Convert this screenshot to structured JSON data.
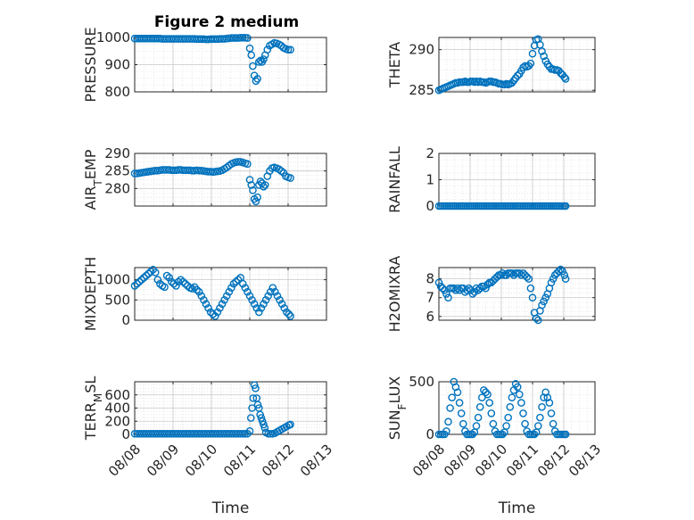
{
  "figure": {
    "title": "Figure 2 medium",
    "marker_color": "#0072BD"
  },
  "chart_data": [
    {
      "type": "scatter",
      "name": "PRESSURE",
      "ylabel": "PRESSURE",
      "xlabel": "",
      "xlim": [
        0,
        5
      ],
      "ylim": [
        800,
        1000
      ],
      "yticks": [
        800,
        900,
        1000
      ],
      "ytick_labels": [
        "800",
        "900",
        "1000"
      ],
      "xticks": [
        0,
        1,
        2,
        3,
        4,
        5
      ],
      "xtick_labels": [],
      "grid": true,
      "x": [
        0.0,
        0.06,
        0.12,
        0.18,
        0.24,
        0.3,
        0.36,
        0.42,
        0.48,
        0.54,
        0.6,
        0.66,
        0.72,
        0.78,
        0.84,
        0.9,
        0.96,
        1.02,
        1.08,
        1.14,
        1.2,
        1.26,
        1.32,
        1.38,
        1.44,
        1.5,
        1.56,
        1.62,
        1.68,
        1.74,
        1.8,
        1.86,
        1.92,
        1.98,
        2.04,
        2.1,
        2.16,
        2.22,
        2.28,
        2.34,
        2.4,
        2.46,
        2.52,
        2.58,
        2.64,
        2.7,
        2.76,
        2.82,
        2.88,
        2.94,
        3.0,
        3.04,
        3.08,
        3.12,
        3.16,
        3.2,
        3.24,
        3.28,
        3.32,
        3.36,
        3.4,
        3.46,
        3.52,
        3.58,
        3.64,
        3.7,
        3.76,
        3.82,
        3.88,
        3.94,
        4.0,
        4.06
      ],
      "y": [
        996,
        996,
        996,
        996,
        996,
        996,
        996,
        996,
        996,
        996,
        996,
        996,
        995,
        995,
        995,
        995,
        995,
        995,
        995,
        995,
        995,
        995,
        995,
        995,
        995,
        995,
        995,
        994,
        994,
        994,
        994,
        993,
        993,
        994,
        994,
        994,
        994,
        995,
        995,
        995,
        996,
        997,
        998,
        998,
        998,
        998,
        999,
        999,
        999,
        998,
        960,
        935,
        895,
        860,
        840,
        848,
        910,
        915,
        910,
        920,
        935,
        955,
        970,
        975,
        980,
        978,
        975,
        970,
        962,
        958,
        955,
        955
      ]
    },
    {
      "type": "scatter",
      "name": "THETA",
      "ylabel": "THETA",
      "xlabel": "",
      "xlim": [
        0,
        5
      ],
      "ylim": [
        284.8,
        291.5
      ],
      "yticks": [
        285,
        290
      ],
      "ytick_labels": [
        "285",
        "290"
      ],
      "xticks": [
        0,
        1,
        2,
        3,
        4,
        5
      ],
      "xtick_labels": [],
      "grid": true,
      "x": [
        0.0,
        0.06,
        0.12,
        0.18,
        0.24,
        0.3,
        0.36,
        0.42,
        0.48,
        0.54,
        0.6,
        0.66,
        0.72,
        0.78,
        0.84,
        0.9,
        0.96,
        1.02,
        1.08,
        1.14,
        1.2,
        1.26,
        1.32,
        1.38,
        1.44,
        1.5,
        1.56,
        1.62,
        1.68,
        1.74,
        1.8,
        1.86,
        1.92,
        1.98,
        2.04,
        2.1,
        2.16,
        2.22,
        2.28,
        2.34,
        2.4,
        2.46,
        2.52,
        2.58,
        2.64,
        2.7,
        2.76,
        2.82,
        2.88,
        2.94,
        3.0,
        3.06,
        3.12,
        3.18,
        3.24,
        3.3,
        3.36,
        3.42,
        3.48,
        3.54,
        3.6,
        3.66,
        3.72,
        3.78,
        3.84,
        3.9,
        3.96,
        4.02,
        4.06
      ],
      "y": [
        285.0,
        285.1,
        285.2,
        285.3,
        285.4,
        285.5,
        285.6,
        285.7,
        285.8,
        285.9,
        285.9,
        286.0,
        286.0,
        286.0,
        286.1,
        286.0,
        286.0,
        286.1,
        286.1,
        286.0,
        286.1,
        286.0,
        286.1,
        286.0,
        286.0,
        285.9,
        286.0,
        286.1,
        286.1,
        286.0,
        286.0,
        285.9,
        285.8,
        285.8,
        285.7,
        285.7,
        285.8,
        285.7,
        285.8,
        285.9,
        286.2,
        286.5,
        286.8,
        287.0,
        287.4,
        287.8,
        288.0,
        287.9,
        288.0,
        288.3,
        289.5,
        290.5,
        291.2,
        291.3,
        290.6,
        289.8,
        289.2,
        288.6,
        288.2,
        287.9,
        287.6,
        287.6,
        287.5,
        287.5,
        287.4,
        287.1,
        286.9,
        286.6,
        286.4
      ]
    },
    {
      "type": "scatter",
      "name": "AIR_TEMP",
      "ylabel": "AIR_TEMP",
      "xlabel": "",
      "xlim": [
        0,
        5
      ],
      "ylim": [
        275,
        290
      ],
      "yticks": [
        280,
        285,
        290
      ],
      "ytick_labels": [
        "280",
        "285",
        "290"
      ],
      "xticks": [
        0,
        1,
        2,
        3,
        4,
        5
      ],
      "xtick_labels": [],
      "grid": true,
      "x": [
        0.0,
        0.06,
        0.12,
        0.18,
        0.24,
        0.3,
        0.36,
        0.42,
        0.48,
        0.54,
        0.6,
        0.66,
        0.72,
        0.78,
        0.84,
        0.9,
        0.96,
        1.02,
        1.08,
        1.14,
        1.2,
        1.26,
        1.32,
        1.38,
        1.44,
        1.5,
        1.56,
        1.62,
        1.68,
        1.74,
        1.8,
        1.86,
        1.92,
        1.98,
        2.04,
        2.1,
        2.16,
        2.22,
        2.28,
        2.34,
        2.4,
        2.46,
        2.52,
        2.58,
        2.64,
        2.7,
        2.76,
        2.82,
        2.88,
        2.94,
        3.0,
        3.04,
        3.08,
        3.12,
        3.16,
        3.2,
        3.24,
        3.28,
        3.32,
        3.36,
        3.4,
        3.46,
        3.52,
        3.58,
        3.64,
        3.7,
        3.76,
        3.82,
        3.88,
        3.94,
        4.0,
        4.06
      ],
      "y": [
        284.3,
        284.3,
        284.4,
        284.5,
        284.6,
        284.7,
        284.8,
        284.9,
        285.0,
        285.1,
        285.1,
        285.2,
        285.3,
        285.3,
        285.3,
        285.3,
        285.2,
        285.2,
        285.2,
        285.3,
        285.3,
        285.2,
        285.2,
        285.2,
        285.2,
        285.1,
        285.1,
        285.2,
        285.1,
        285.1,
        285.0,
        284.9,
        284.8,
        284.8,
        284.7,
        284.8,
        284.9,
        285.0,
        285.2,
        285.6,
        286.0,
        286.5,
        287.0,
        287.3,
        287.5,
        287.6,
        287.6,
        287.4,
        287.2,
        287.0,
        282.5,
        281.0,
        279.5,
        277.0,
        276.3,
        277.5,
        281.0,
        282.0,
        281.5,
        280.5,
        281.0,
        283.5,
        285.0,
        285.8,
        286.0,
        285.8,
        285.5,
        285.0,
        284.5,
        283.5,
        283.2,
        283.0
      ]
    },
    {
      "type": "scatter",
      "name": "RAINFALL",
      "ylabel": "RAINFALL",
      "xlabel": "",
      "xlim": [
        0,
        5
      ],
      "ylim": [
        0,
        2
      ],
      "yticks": [
        0,
        1,
        2
      ],
      "ytick_labels": [
        "0",
        "1",
        "2"
      ],
      "xticks": [
        0,
        1,
        2,
        3,
        4,
        5
      ],
      "xtick_labels": [],
      "grid": true,
      "x": [
        0.0,
        0.06,
        0.12,
        0.18,
        0.24,
        0.3,
        0.36,
        0.42,
        0.48,
        0.54,
        0.6,
        0.66,
        0.72,
        0.78,
        0.84,
        0.9,
        0.96,
        1.02,
        1.08,
        1.14,
        1.2,
        1.26,
        1.32,
        1.38,
        1.44,
        1.5,
        1.56,
        1.62,
        1.68,
        1.74,
        1.8,
        1.86,
        1.92,
        1.98,
        2.04,
        2.1,
        2.16,
        2.22,
        2.28,
        2.34,
        2.4,
        2.46,
        2.52,
        2.58,
        2.64,
        2.7,
        2.76,
        2.82,
        2.88,
        2.94,
        3.0,
        3.06,
        3.12,
        3.18,
        3.24,
        3.3,
        3.36,
        3.42,
        3.48,
        3.54,
        3.6,
        3.66,
        3.72,
        3.78,
        3.84,
        3.9,
        3.96,
        4.02,
        4.06
      ],
      "y": [
        0,
        0,
        0,
        0,
        0,
        0,
        0,
        0,
        0,
        0,
        0,
        0,
        0,
        0,
        0,
        0,
        0,
        0,
        0,
        0,
        0,
        0,
        0,
        0,
        0,
        0,
        0,
        0,
        0,
        0,
        0,
        0,
        0,
        0,
        0,
        0,
        0,
        0,
        0,
        0,
        0,
        0,
        0,
        0,
        0,
        0,
        0,
        0,
        0,
        0,
        0,
        0,
        0,
        0,
        0,
        0,
        0,
        0,
        0,
        0,
        0,
        0,
        0,
        0,
        0,
        0,
        0,
        0,
        0
      ]
    },
    {
      "type": "scatter",
      "name": "MIXDEPTH",
      "ylabel": "MIXDEPTH",
      "xlabel": "",
      "xlim": [
        0,
        5
      ],
      "ylim": [
        0,
        1300
      ],
      "yticks": [
        0,
        500,
        1000
      ],
      "ytick_labels": [
        "0",
        "500",
        "1000"
      ],
      "xticks": [
        0,
        1,
        2,
        3,
        4,
        5
      ],
      "xtick_labels": [],
      "grid": true,
      "x": [
        0.0,
        0.06,
        0.12,
        0.18,
        0.24,
        0.3,
        0.36,
        0.42,
        0.48,
        0.54,
        0.6,
        0.66,
        0.72,
        0.78,
        0.84,
        0.9,
        0.96,
        1.02,
        1.08,
        1.14,
        1.2,
        1.26,
        1.32,
        1.38,
        1.44,
        1.5,
        1.56,
        1.62,
        1.68,
        1.74,
        1.8,
        1.86,
        1.92,
        1.98,
        2.04,
        2.1,
        2.16,
        2.22,
        2.28,
        2.34,
        2.4,
        2.46,
        2.52,
        2.58,
        2.64,
        2.7,
        2.76,
        2.82,
        2.88,
        2.94,
        3.0,
        3.06,
        3.12,
        3.18,
        3.24,
        3.3,
        3.36,
        3.42,
        3.48,
        3.54,
        3.6,
        3.66,
        3.72,
        3.78,
        3.84,
        3.9,
        3.96,
        4.02,
        4.06
      ],
      "y": [
        850,
        900,
        950,
        1000,
        1050,
        1100,
        1150,
        1200,
        1250,
        1180,
        1000,
        900,
        850,
        820,
        1100,
        1050,
        950,
        900,
        850,
        950,
        1000,
        950,
        900,
        850,
        800,
        780,
        820,
        750,
        700,
        600,
        500,
        400,
        300,
        200,
        150,
        100,
        200,
        300,
        400,
        500,
        600,
        700,
        800,
        900,
        950,
        1000,
        1050,
        900,
        800,
        700,
        600,
        500,
        400,
        300,
        200,
        300,
        400,
        500,
        600,
        700,
        800,
        700,
        600,
        500,
        400,
        300,
        200,
        150,
        100
      ]
    },
    {
      "type": "scatter",
      "name": "H2OMIXRA",
      "ylabel": "H2OMIXRA",
      "xlabel": "",
      "xlim": [
        0,
        5
      ],
      "ylim": [
        5.8,
        8.6
      ],
      "yticks": [
        6,
        7,
        8
      ],
      "ytick_labels": [
        "6",
        "7",
        "8"
      ],
      "xticks": [
        0,
        1,
        2,
        3,
        4,
        5
      ],
      "xtick_labels": [],
      "grid": true,
      "x": [
        0.0,
        0.06,
        0.12,
        0.18,
        0.24,
        0.3,
        0.36,
        0.42,
        0.48,
        0.54,
        0.6,
        0.66,
        0.72,
        0.78,
        0.84,
        0.9,
        0.96,
        1.02,
        1.08,
        1.14,
        1.2,
        1.26,
        1.32,
        1.38,
        1.44,
        1.5,
        1.56,
        1.62,
        1.68,
        1.74,
        1.8,
        1.86,
        1.92,
        1.98,
        2.04,
        2.1,
        2.16,
        2.22,
        2.28,
        2.34,
        2.4,
        2.46,
        2.52,
        2.58,
        2.64,
        2.7,
        2.76,
        2.82,
        2.88,
        2.94,
        3.0,
        3.06,
        3.12,
        3.18,
        3.24,
        3.3,
        3.36,
        3.42,
        3.48,
        3.54,
        3.6,
        3.66,
        3.72,
        3.78,
        3.84,
        3.9,
        3.96,
        4.02,
        4.06
      ],
      "y": [
        7.8,
        7.6,
        7.5,
        7.4,
        7.2,
        7.0,
        7.5,
        7.5,
        7.5,
        7.4,
        7.5,
        7.4,
        7.5,
        7.5,
        7.3,
        7.4,
        7.5,
        7.4,
        7.2,
        7.3,
        7.5,
        7.4,
        7.5,
        7.6,
        7.6,
        7.5,
        7.7,
        7.8,
        7.8,
        7.9,
        8.0,
        8.1,
        8.2,
        8.2,
        8.3,
        8.2,
        8.2,
        8.3,
        8.3,
        8.3,
        8.2,
        8.3,
        8.3,
        8.3,
        8.2,
        8.3,
        8.2,
        8.1,
        8.0,
        7.5,
        7.0,
        6.2,
        5.9,
        5.8,
        6.3,
        6.6,
        6.8,
        7.0,
        7.2,
        7.5,
        7.8,
        8.0,
        8.2,
        8.3,
        8.4,
        8.5,
        8.4,
        8.2,
        8.0
      ]
    },
    {
      "type": "scatter",
      "name": "TERR_MSL",
      "ylabel": "TERR_MSL",
      "xlabel": "Time",
      "xlim": [
        0,
        5
      ],
      "ylim": [
        0,
        800
      ],
      "yticks": [
        0,
        200,
        400,
        600
      ],
      "ytick_labels": [
        "0",
        "200",
        "400",
        "600"
      ],
      "xticks": [
        0,
        1,
        2,
        3,
        4,
        5
      ],
      "xtick_labels": [
        "08/08",
        "08/09",
        "08/10",
        "08/11",
        "08/12",
        "08/13"
      ],
      "grid": true,
      "x": [
        0.0,
        0.06,
        0.12,
        0.18,
        0.24,
        0.3,
        0.36,
        0.42,
        0.48,
        0.54,
        0.6,
        0.66,
        0.72,
        0.78,
        0.84,
        0.9,
        0.96,
        1.02,
        1.08,
        1.14,
        1.2,
        1.26,
        1.32,
        1.38,
        1.44,
        1.5,
        1.56,
        1.62,
        1.68,
        1.74,
        1.8,
        1.86,
        1.92,
        1.98,
        2.04,
        2.1,
        2.16,
        2.22,
        2.28,
        2.34,
        2.4,
        2.46,
        2.52,
        2.58,
        2.64,
        2.7,
        2.76,
        2.82,
        2.88,
        2.94,
        3.0,
        3.03,
        3.06,
        3.09,
        3.12,
        3.15,
        3.18,
        3.21,
        3.24,
        3.27,
        3.3,
        3.33,
        3.36,
        3.39,
        3.42,
        3.48,
        3.54,
        3.6,
        3.66,
        3.72,
        3.78,
        3.84,
        3.9,
        3.96,
        4.02,
        4.06
      ],
      "y": [
        10,
        10,
        10,
        10,
        10,
        10,
        10,
        10,
        10,
        10,
        10,
        10,
        10,
        10,
        10,
        10,
        10,
        10,
        10,
        10,
        10,
        10,
        10,
        10,
        10,
        10,
        10,
        10,
        10,
        10,
        10,
        10,
        10,
        10,
        10,
        10,
        10,
        10,
        10,
        10,
        10,
        10,
        10,
        10,
        10,
        10,
        10,
        10,
        10,
        10,
        50,
        250,
        400,
        550,
        750,
        700,
        550,
        450,
        400,
        300,
        250,
        200,
        150,
        100,
        30,
        10,
        10,
        10,
        20,
        40,
        60,
        80,
        100,
        120,
        140,
        150
      ]
    },
    {
      "type": "scatter",
      "name": "SUN_FLUX",
      "ylabel": "SUN_FLUX",
      "xlabel": "Time",
      "xlim": [
        0,
        5
      ],
      "ylim": [
        0,
        500
      ],
      "yticks": [
        0,
        500
      ],
      "ytick_labels": [
        "0",
        "500"
      ],
      "xticks": [
        0,
        1,
        2,
        3,
        4,
        5
      ],
      "xtick_labels": [
        "08/08",
        "08/09",
        "08/10",
        "08/11",
        "08/12",
        "08/13"
      ],
      "grid": true,
      "x": [
        0.0,
        0.06,
        0.12,
        0.18,
        0.24,
        0.3,
        0.36,
        0.42,
        0.48,
        0.54,
        0.6,
        0.66,
        0.72,
        0.78,
        0.84,
        0.9,
        0.96,
        1.02,
        1.08,
        1.14,
        1.2,
        1.26,
        1.32,
        1.38,
        1.44,
        1.5,
        1.56,
        1.62,
        1.68,
        1.74,
        1.8,
        1.86,
        1.92,
        1.98,
        2.04,
        2.1,
        2.16,
        2.22,
        2.28,
        2.34,
        2.4,
        2.46,
        2.52,
        2.58,
        2.64,
        2.7,
        2.76,
        2.82,
        2.88,
        2.94,
        3.0,
        3.06,
        3.12,
        3.18,
        3.24,
        3.3,
        3.36,
        3.42,
        3.48,
        3.54,
        3.6,
        3.66,
        3.72,
        3.78,
        3.84,
        3.9,
        3.96,
        4.02,
        4.06
      ],
      "y": [
        0,
        0,
        0,
        0,
        30,
        120,
        250,
        350,
        500,
        450,
        400,
        300,
        200,
        100,
        30,
        0,
        0,
        0,
        0,
        20,
        80,
        160,
        260,
        350,
        420,
        400,
        380,
        300,
        200,
        100,
        30,
        0,
        0,
        0,
        0,
        20,
        80,
        160,
        260,
        350,
        420,
        480,
        450,
        380,
        300,
        200,
        100,
        30,
        0,
        0,
        0,
        0,
        20,
        80,
        160,
        260,
        350,
        400,
        350,
        300,
        200,
        100,
        30,
        0,
        0,
        0,
        0,
        0,
        0
      ]
    }
  ]
}
